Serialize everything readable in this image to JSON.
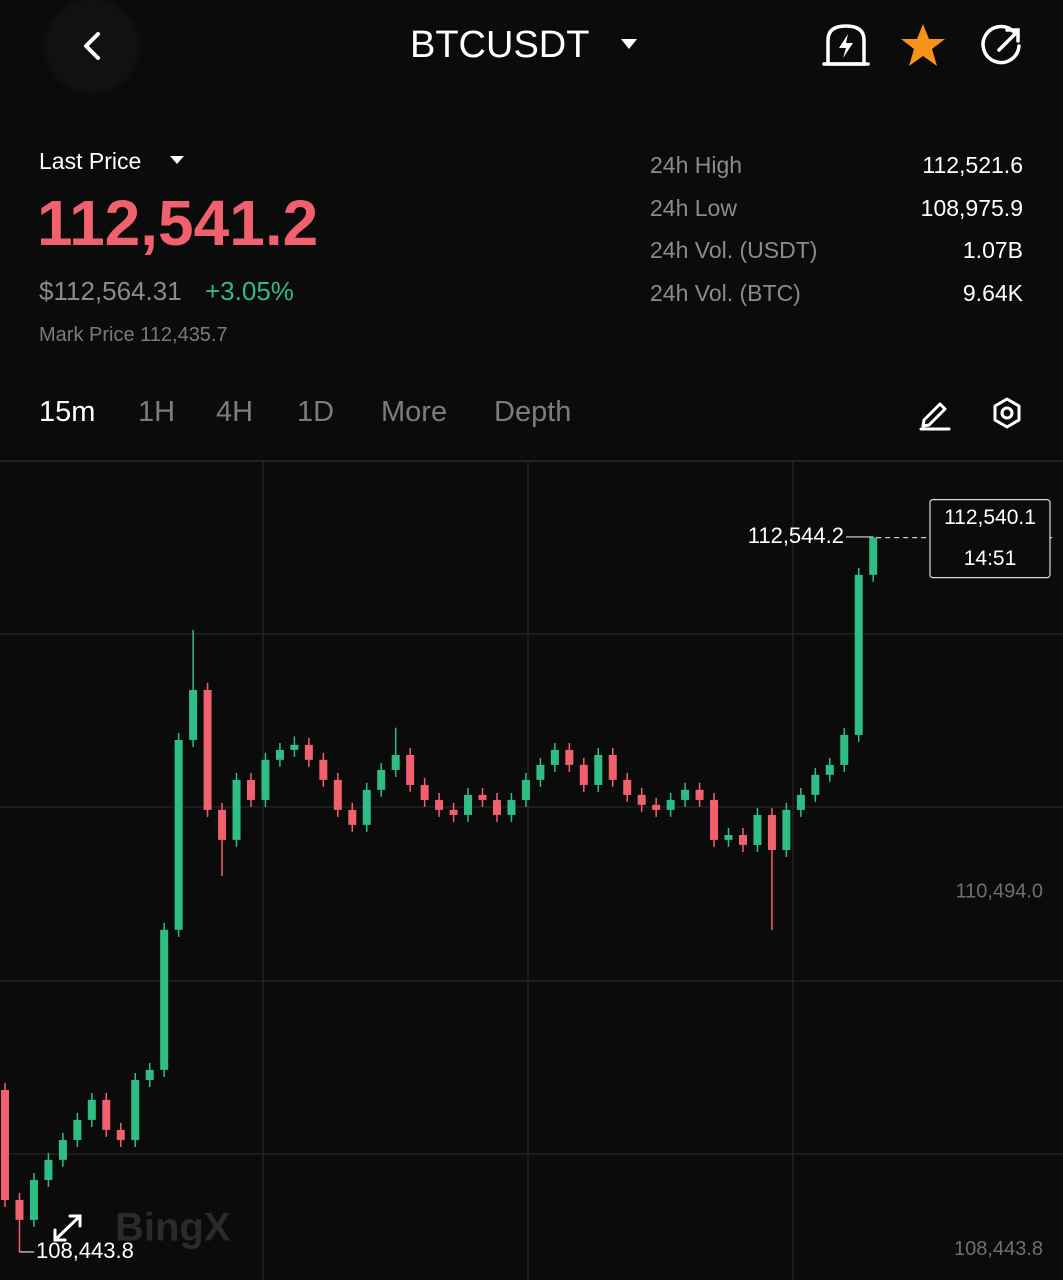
{
  "header": {
    "symbol": "BTCUSDT"
  },
  "ticker": {
    "last_price_label": "Last Price",
    "last_price": "112,541.2",
    "usd_price": "$112,564.31",
    "change": "+3.05%",
    "mark_price": "Mark Price 112,435.7",
    "stats": [
      {
        "label": "24h High",
        "value": "112,521.6"
      },
      {
        "label": "24h Low",
        "value": "108,975.9"
      },
      {
        "label": "24h Vol. (USDT)",
        "value": "1.07B"
      },
      {
        "label": "24h Vol. (BTC)",
        "value": "9.64K"
      }
    ]
  },
  "timeframes": [
    "15m",
    "1H",
    "4H",
    "1D",
    "More",
    "Depth"
  ],
  "watermark": "BingX",
  "chart_data": {
    "type": "candlestick",
    "up_color": "#2ebd85",
    "down_color": "#f0616d",
    "ylim": [
      108283,
      112974
    ],
    "yticks": [
      {
        "value": 110494,
        "label": "110,494.0"
      },
      {
        "value": 108443.8,
        "label": "108,443.8"
      }
    ],
    "max_marker": {
      "value": 112544.2,
      "label": "112,544.2"
    },
    "min_marker": {
      "value": 108443.8,
      "label": "108,443.8"
    },
    "last": {
      "value": 112540.1,
      "label": "112,540.1",
      "time": "14:51"
    },
    "open": [
      109373,
      108742,
      108628,
      108857,
      108972,
      109086,
      109201,
      109316,
      109144,
      109086,
      109430,
      109488,
      110291,
      111380,
      111667,
      110979,
      110807,
      111151,
      111036,
      111266,
      111323,
      111352,
      111266,
      111151,
      110979,
      110893,
      111094,
      111208,
      111294,
      111122,
      111036,
      110979,
      110950,
      111065,
      111036,
      110950,
      111036,
      111151,
      111237,
      111323,
      111237,
      111122,
      111294,
      111151,
      111065,
      111008,
      110979,
      111036,
      111094,
      111036,
      110807,
      110835,
      110778,
      110950,
      110749,
      110979,
      111065,
      111180,
      111237,
      111409,
      112327
    ],
    "high": [
      109413,
      108782,
      108897,
      109012,
      109126,
      109241,
      109356,
      109356,
      109184,
      109470,
      109528,
      110331,
      111420,
      112011,
      111707,
      111019,
      111191,
      111191,
      111306,
      111363,
      111400,
      111392,
      111306,
      111191,
      111019,
      111134,
      111248,
      111450,
      111334,
      111162,
      111076,
      111019,
      111105,
      111105,
      111076,
      111076,
      111191,
      111277,
      111363,
      111363,
      111277,
      111334,
      111334,
      111191,
      111105,
      111048,
      111076,
      111134,
      111134,
      111076,
      110875,
      110875,
      110990,
      110990,
      111019,
      111105,
      111220,
      111277,
      111449,
      112367,
      112544.2
    ],
    "low": [
      108702,
      108443.8,
      108588,
      108817,
      108932,
      109046,
      109161,
      109104,
      109046,
      109046,
      109390,
      109448,
      110251,
      111340,
      110939,
      110600,
      110767,
      110996,
      110996,
      111226,
      111283,
      111226,
      111111,
      110939,
      110853,
      110853,
      111054,
      111168,
      111082,
      110996,
      110939,
      110910,
      110910,
      110996,
      110910,
      110910,
      110996,
      111111,
      111197,
      111197,
      111082,
      111082,
      111111,
      111025,
      110968,
      110939,
      110939,
      110996,
      110996,
      110767,
      110767,
      110738,
      110738,
      110290,
      110709,
      110939,
      111025,
      111140,
      111197,
      111369,
      112287
    ],
    "close": [
      108742,
      108628,
      108857,
      108972,
      109086,
      109201,
      109316,
      109144,
      109086,
      109430,
      109488,
      110291,
      111380,
      111667,
      110979,
      110807,
      111151,
      111036,
      111266,
      111323,
      111352,
      111266,
      111151,
      110979,
      110893,
      111094,
      111208,
      111294,
      111122,
      111036,
      110979,
      110950,
      111065,
      111036,
      110950,
      111036,
      111151,
      111237,
      111323,
      111237,
      111122,
      111294,
      111151,
      111065,
      111008,
      110979,
      111036,
      111094,
      111036,
      110807,
      110835,
      110778,
      110950,
      110749,
      110979,
      111065,
      111180,
      111237,
      111409,
      112327,
      112540.1
    ]
  }
}
